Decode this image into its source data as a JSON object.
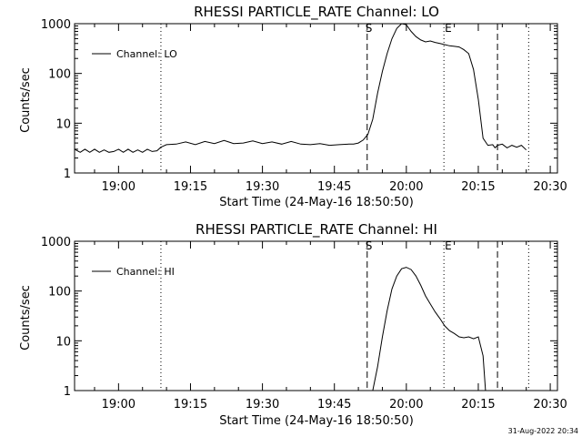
{
  "footer_timestamp": "31-Aug-2022 20:34",
  "chart_data": [
    {
      "type": "line",
      "title": "RHESSI PARTICLE_RATE Channel: LO",
      "xlabel": "Start Time (24-May-16 18:50:50)",
      "ylabel": "Counts/sec",
      "yscale": "log",
      "xlim": [
        "18:50:50",
        "20:31:30"
      ],
      "ylim": [
        1,
        1000
      ],
      "x_ticks": [
        "19:00",
        "19:15",
        "19:30",
        "19:45",
        "20:00",
        "20:15",
        "20:30"
      ],
      "y_ticks": [
        "1",
        "10",
        "100",
        "1000"
      ],
      "legend": {
        "position": "top-left",
        "entries": [
          "Channel: LO"
        ]
      },
      "markers": [
        {
          "time": "19:08:50",
          "style": "dotted",
          "label": ""
        },
        {
          "time": "19:51:50",
          "style": "dashed",
          "label": "S"
        },
        {
          "time": "20:07:50",
          "style": "dotted",
          "label": "E"
        },
        {
          "time": "20:19:00",
          "style": "dashed",
          "label": ""
        },
        {
          "time": "20:25:30",
          "style": "dotted",
          "label": ""
        }
      ],
      "series": [
        {
          "name": "Channel: LO",
          "x": [
            "18:50:50",
            "18:52:00",
            "18:53:00",
            "18:54:00",
            "18:55:00",
            "18:56:00",
            "18:57:00",
            "18:58:00",
            "18:59:00",
            "19:00:00",
            "19:01:00",
            "19:02:00",
            "19:03:00",
            "19:04:00",
            "19:05:00",
            "19:06:00",
            "19:07:00",
            "19:08:00",
            "19:08:50",
            "19:10:00",
            "19:12:00",
            "19:14:00",
            "19:16:00",
            "19:18:00",
            "19:20:00",
            "19:22:00",
            "19:24:00",
            "19:26:00",
            "19:28:00",
            "19:30:00",
            "19:32:00",
            "19:34:00",
            "19:36:00",
            "19:38:00",
            "19:40:00",
            "19:42:00",
            "19:44:00",
            "19:46:00",
            "19:48:00",
            "19:49:00",
            "19:50:00",
            "19:51:00",
            "19:52:00",
            "19:53:00",
            "19:54:00",
            "19:55:00",
            "19:56:00",
            "19:57:00",
            "19:58:00",
            "19:59:00",
            "20:00:00",
            "20:01:00",
            "20:02:00",
            "20:03:00",
            "20:04:00",
            "20:05:00",
            "20:06:00",
            "20:07:00",
            "20:08:00",
            "20:09:00",
            "20:10:00",
            "20:11:00",
            "20:12:00",
            "20:13:00",
            "20:14:00",
            "20:15:00",
            "20:16:00",
            "20:17:00",
            "20:18:00",
            "20:18:30",
            "20:19:00",
            "20:20:00",
            "20:21:00",
            "20:22:00",
            "20:23:00",
            "20:24:00",
            "20:25:00"
          ],
          "y": [
            3.0,
            2.6,
            3.0,
            2.6,
            3.0,
            2.6,
            2.9,
            2.6,
            2.7,
            3.0,
            2.6,
            3.0,
            2.6,
            2.9,
            2.6,
            3.0,
            2.7,
            2.8,
            3.3,
            3.7,
            3.8,
            4.2,
            3.7,
            4.3,
            3.9,
            4.5,
            3.9,
            4.0,
            4.4,
            3.9,
            4.2,
            3.8,
            4.3,
            3.8,
            3.7,
            3.9,
            3.6,
            3.7,
            3.8,
            3.8,
            4.0,
            4.6,
            6.0,
            12,
            40,
            110,
            250,
            500,
            800,
            1000,
            950,
            700,
            550,
            470,
            430,
            450,
            420,
            400,
            380,
            360,
            350,
            340,
            300,
            250,
            120,
            30,
            5.0,
            3.6,
            3.7,
            3.2,
            3.6,
            3.8,
            3.2,
            3.6,
            3.3,
            3.6,
            2.9
          ]
        }
      ]
    },
    {
      "type": "line",
      "title": "RHESSI PARTICLE_RATE Channel: HI",
      "xlabel": "Start Time (24-May-16 18:50:50)",
      "ylabel": "Counts/sec",
      "yscale": "log",
      "xlim": [
        "18:50:50",
        "20:31:30"
      ],
      "ylim": [
        1,
        1000
      ],
      "x_ticks": [
        "19:00",
        "19:15",
        "19:30",
        "19:45",
        "20:00",
        "20:15",
        "20:30"
      ],
      "y_ticks": [
        "1",
        "10",
        "100",
        "1000"
      ],
      "legend": {
        "position": "top-left",
        "entries": [
          "Channel: HI"
        ]
      },
      "markers": [
        {
          "time": "19:08:50",
          "style": "dotted",
          "label": ""
        },
        {
          "time": "19:51:50",
          "style": "dashed",
          "label": "S"
        },
        {
          "time": "20:07:50",
          "style": "dotted",
          "label": "E"
        },
        {
          "time": "20:19:00",
          "style": "dashed",
          "label": ""
        },
        {
          "time": "20:25:30",
          "style": "dotted",
          "label": ""
        }
      ],
      "series": [
        {
          "name": "Channel: HI",
          "x": [
            "19:53:00",
            "19:54:00",
            "19:55:00",
            "19:56:00",
            "19:57:00",
            "19:58:00",
            "19:59:00",
            "20:00:00",
            "20:01:00",
            "20:02:00",
            "20:03:00",
            "20:04:00",
            "20:05:00",
            "20:06:00",
            "20:07:00",
            "20:08:00",
            "20:09:00",
            "20:10:00",
            "20:11:00",
            "20:12:00",
            "20:13:00",
            "20:14:00",
            "20:15:00",
            "20:16:00",
            "20:16:30"
          ],
          "y": [
            1.0,
            3.0,
            12,
            40,
            110,
            200,
            280,
            300,
            270,
            200,
            130,
            80,
            55,
            38,
            28,
            20,
            16,
            14,
            12,
            11.5,
            12,
            11,
            12,
            5,
            1.0
          ]
        }
      ]
    }
  ]
}
